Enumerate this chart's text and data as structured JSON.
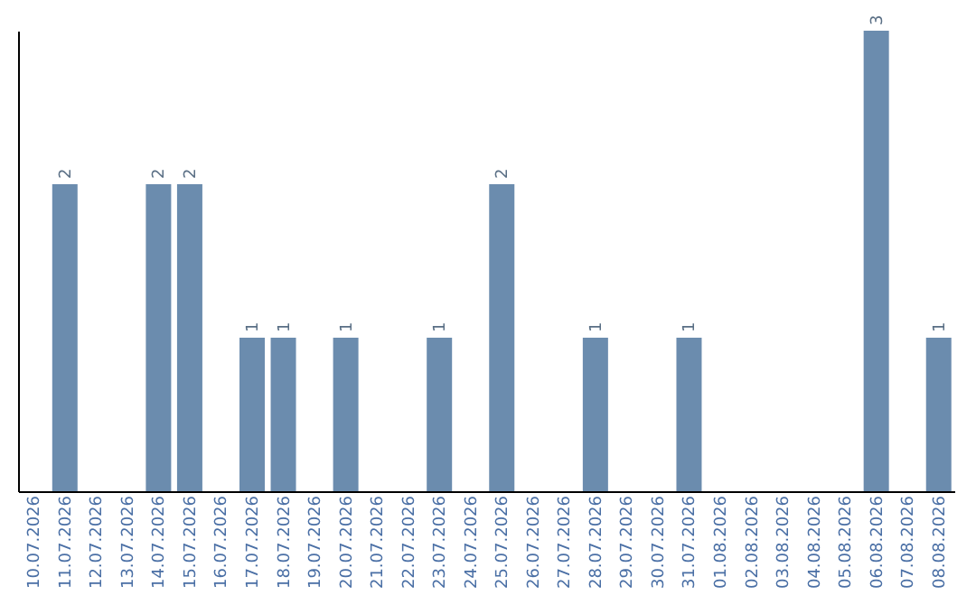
{
  "chart_data": {
    "type": "bar",
    "categories": [
      "10.07.2026",
      "11.07.2026",
      "12.07.2026",
      "13.07.2026",
      "14.07.2026",
      "15.07.2026",
      "16.07.2026",
      "17.07.2026",
      "18.07.2026",
      "19.07.2026",
      "20.07.2026",
      "21.07.2026",
      "22.07.2026",
      "23.07.2026",
      "24.07.2026",
      "25.07.2026",
      "26.07.2026",
      "27.07.2026",
      "28.07.2026",
      "29.07.2026",
      "30.07.2026",
      "31.07.2026",
      "01.08.2026",
      "02.08.2026",
      "03.08.2026",
      "04.08.2026",
      "05.08.2026",
      "06.08.2026",
      "07.08.2026",
      "08.08.2026"
    ],
    "values": [
      0,
      2,
      0,
      0,
      2,
      2,
      0,
      1,
      1,
      0,
      1,
      0,
      0,
      1,
      0,
      2,
      0,
      0,
      1,
      0,
      0,
      1,
      0,
      0,
      0,
      0,
      0,
      3,
      0,
      1
    ],
    "value_labels": [
      null,
      "2",
      null,
      null,
      "2",
      "2",
      null,
      "1",
      "1",
      null,
      "1",
      null,
      null,
      "1",
      null,
      "2",
      null,
      null,
      "1",
      null,
      null,
      "1",
      null,
      null,
      null,
      null,
      null,
      "3",
      null,
      "1"
    ],
    "color": "#6b8cae",
    "grid": false
  }
}
